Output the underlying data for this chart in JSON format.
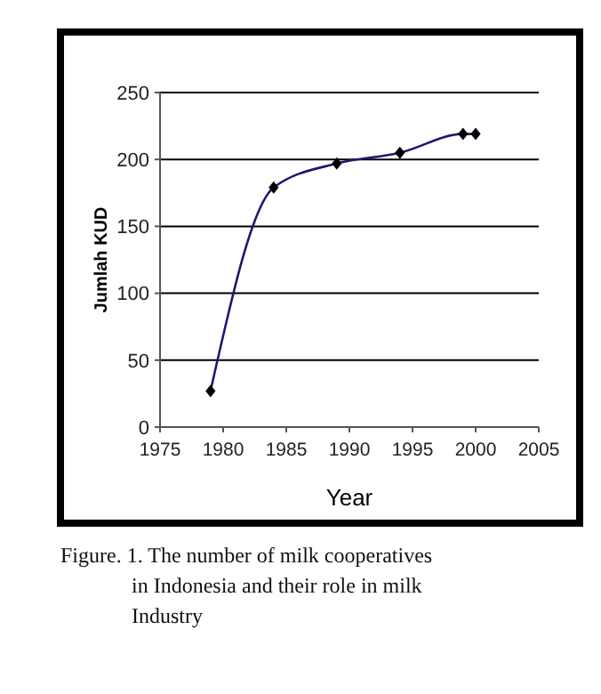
{
  "chart_data": {
    "type": "line",
    "xlabel": "Year",
    "ylabel": "Jumlah KUD",
    "x": [
      1979,
      1984,
      1989,
      1994,
      1999,
      2000
    ],
    "series": [
      {
        "color": "#1a1a6e",
        "values": [
          27,
          179,
          197,
          205,
          219,
          219
        ]
      }
    ],
    "xlim": [
      1975,
      2005
    ],
    "xticks": [
      1975,
      1980,
      1985,
      1990,
      1995,
      2000,
      2005
    ],
    "ylim": [
      0,
      250
    ],
    "yticks": [
      0,
      50,
      100,
      150,
      200,
      250
    ],
    "grid": "y",
    "marker": "diamond",
    "line_style": "solid",
    "annotations": [
      "Figure. 1. The number of milk cooperatives in Indonesia and their role in milk Industry"
    ]
  }
}
